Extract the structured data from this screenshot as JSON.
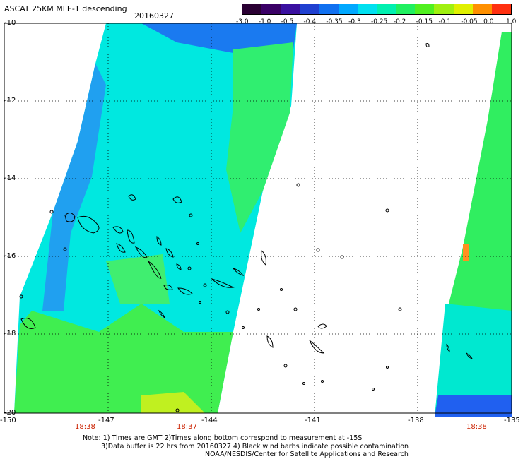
{
  "title": "ASCAT 25KM MLE-1 descending",
  "date": "20160327",
  "colorbar": {
    "labels": [
      "-3.0",
      "-1.0",
      "-0.5",
      "-0.4",
      "-0.35",
      "-0.3",
      "-0.25",
      "-0.2",
      "-0.15",
      "-0.1",
      "-0.05",
      "0.0",
      "1.0"
    ],
    "colors": [
      "#2a0033",
      "#3a0066",
      "#3a10a0",
      "#2040d0",
      "#1070f0",
      "#00a8ff",
      "#00e0f0",
      "#00f0b0",
      "#20f060",
      "#50f020",
      "#a0f010",
      "#e0f000",
      "#ff9000",
      "#ff3010"
    ]
  },
  "axes": {
    "lat_labels": [
      "-10",
      "-12",
      "-14",
      "-16",
      "-18",
      "-20"
    ],
    "lon_labels": [
      "-150",
      "-147",
      "-144",
      "-141",
      "-138",
      "-135"
    ]
  },
  "times": [
    "18:38",
    "18:37",
    "18:38"
  ],
  "notes": [
    "Note: 1) Times are GMT 2)Times along bottom correspond to measurement at -15S",
    "3)Data buffer is 22 hrs from 20160327 4) Black wind barbs indicate possible contamination",
    "NOAA/NESDIS/Center for Satellite Applications and Research"
  ]
}
